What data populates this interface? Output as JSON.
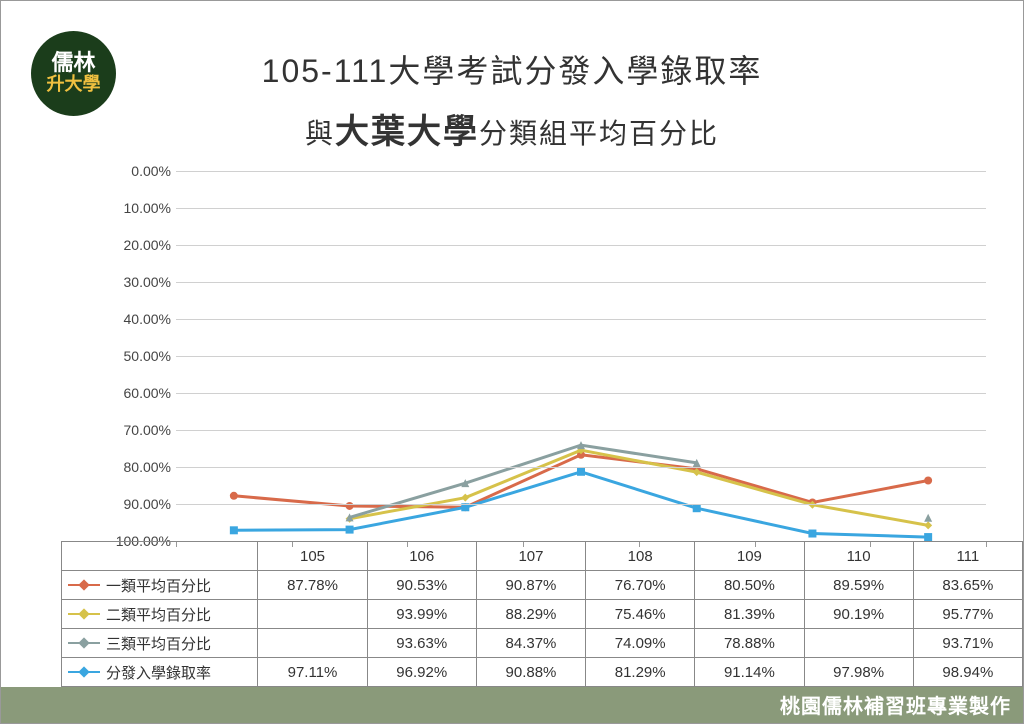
{
  "logo": {
    "line1": "儒林",
    "line2": "升大學"
  },
  "title": {
    "line1": "105-111大學考試分發入學錄取率",
    "line2_prefix": "與",
    "line2_big": "大葉大學",
    "line2_suffix": "分類組平均百分比"
  },
  "chart": {
    "type": "line",
    "y_inverted": true,
    "ylim": [
      0,
      100
    ],
    "ytick_step": 10,
    "yticks": [
      "0.00%",
      "10.00%",
      "20.00%",
      "30.00%",
      "40.00%",
      "50.00%",
      "60.00%",
      "70.00%",
      "80.00%",
      "90.00%",
      "100.00%"
    ],
    "categories": [
      "105",
      "106",
      "107",
      "108",
      "109",
      "110",
      "111"
    ],
    "grid_color": "#d0d0d0",
    "axis_color": "#999999",
    "background_color": "#ffffff",
    "label_fontsize": 14,
    "line_width": 3,
    "marker_size": 8,
    "series": [
      {
        "name": "一類平均百分比",
        "color": "#d86a4a",
        "marker": "circle",
        "values": [
          87.78,
          90.53,
          90.87,
          76.7,
          80.5,
          89.59,
          83.65
        ],
        "display": [
          "87.78%",
          "90.53%",
          "90.87%",
          "76.70%",
          "80.50%",
          "89.59%",
          "83.65%"
        ]
      },
      {
        "name": "二類平均百分比",
        "color": "#d6c24a",
        "marker": "diamond",
        "values": [
          null,
          93.99,
          88.29,
          75.46,
          81.39,
          90.19,
          95.77
        ],
        "display": [
          "",
          "93.99%",
          "88.29%",
          "75.46%",
          "81.39%",
          "90.19%",
          "95.77%"
        ]
      },
      {
        "name": "三類平均百分比",
        "color": "#8aa0a0",
        "marker": "triangle",
        "values": [
          null,
          93.63,
          84.37,
          74.09,
          78.88,
          null,
          93.71
        ],
        "display": [
          "",
          "93.63%",
          "84.37%",
          "74.09%",
          "78.88%",
          "",
          "93.71%"
        ]
      },
      {
        "name": "分發入學錄取率",
        "color": "#3aa6e0",
        "marker": "square",
        "values": [
          97.11,
          96.92,
          90.88,
          81.29,
          91.14,
          97.98,
          98.94
        ],
        "display": [
          "97.11%",
          "96.92%",
          "90.88%",
          "81.29%",
          "91.14%",
          "97.98%",
          "98.94%"
        ]
      }
    ]
  },
  "footer": "桃園儒林補習班專業製作"
}
